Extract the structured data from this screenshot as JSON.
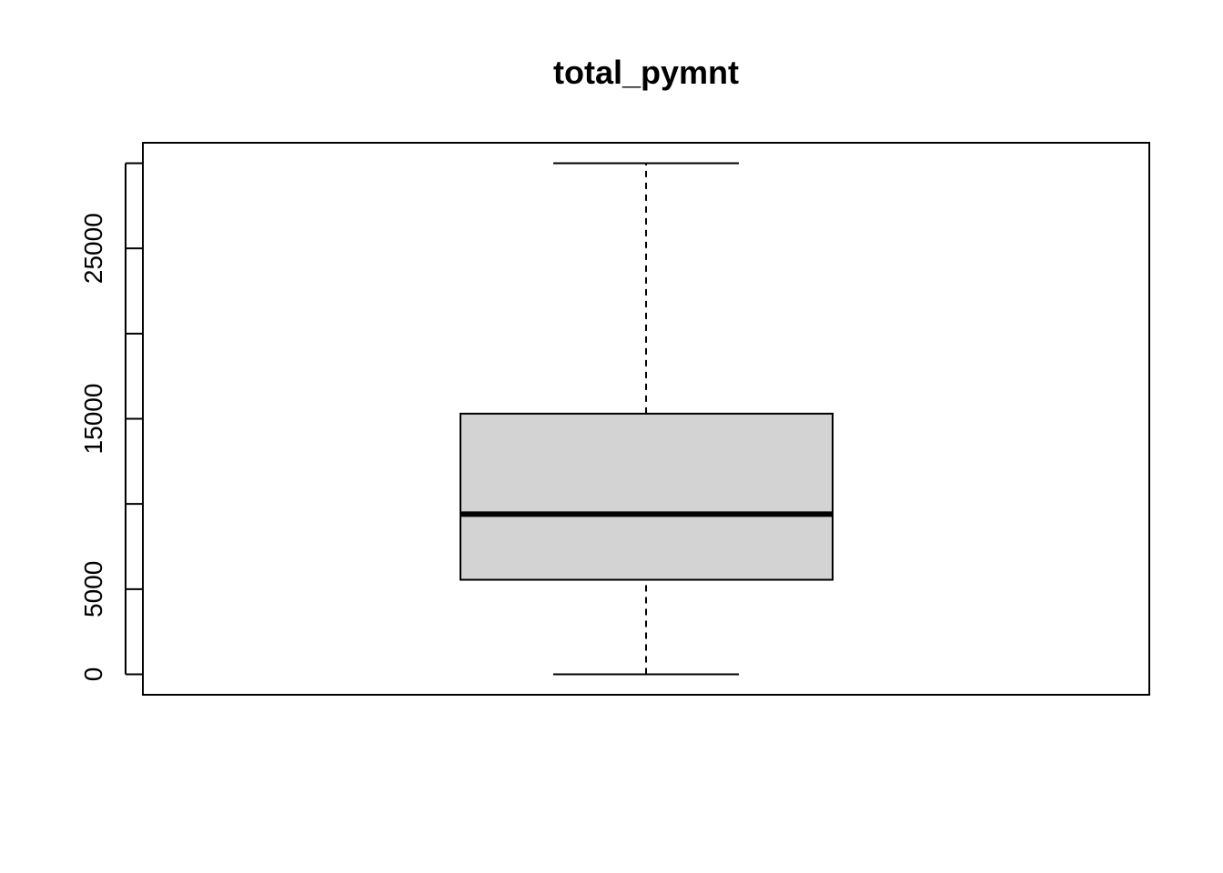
{
  "chart_data": {
    "type": "boxplot",
    "title": "total_pymnt",
    "xlabel": "",
    "ylabel": "",
    "ylim": [
      -1200,
      31200
    ],
    "yticks": [
      0,
      5000,
      10000,
      15000,
      20000,
      25000,
      30000
    ],
    "ytick_labels": [
      "0",
      "5000",
      "",
      "15000",
      "",
      "25000",
      ""
    ],
    "box": {
      "whisker_low": 0,
      "q1": 5550,
      "median": 9400,
      "q3": 15300,
      "whisker_high": 30000
    },
    "colors": {
      "box_fill": "#d3d3d3",
      "line": "#000000"
    },
    "grid": false
  }
}
